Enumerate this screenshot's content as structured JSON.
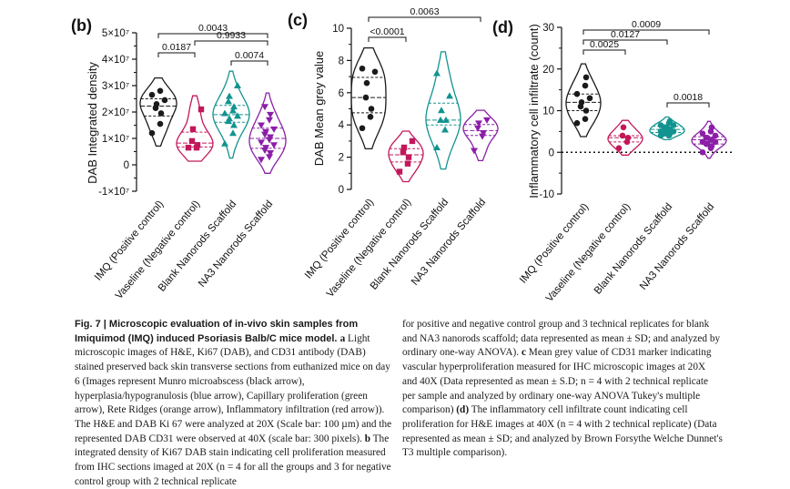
{
  "colors": {
    "black": "#1a1a1a",
    "crimson": "#c2185b",
    "teal": "#12938f",
    "violet": "#8b1fa8"
  },
  "chart_data": [
    {
      "panel": "(b)",
      "type": "violin",
      "ylabel": "DAB Integrated density",
      "ylim": [
        -10000000,
        50000000
      ],
      "yticks": [
        "5×10⁷",
        "4×10⁷",
        "3×10⁷",
        "2×10⁷",
        "1×10⁷",
        "0",
        "-1×10⁷"
      ],
      "ytick_values": [
        50000000,
        40000000,
        30000000,
        20000000,
        10000000,
        0,
        -10000000
      ],
      "categories": [
        "IMQ (Positive control)",
        "Vaseline (Negative control)",
        "Blank Nanorods Scaffold",
        "NA3 Nanorods Scaffold"
      ],
      "series": [
        {
          "group": "IMQ (Positive control)",
          "marker": "circle",
          "color": "#1a1a1a",
          "values": [
            28000000,
            26500000,
            24500000,
            23000000,
            21500000,
            19500000,
            15500000,
            12000000
          ]
        },
        {
          "group": "Vaseline (Negative control)",
          "marker": "square",
          "color": "#c2185b",
          "values": [
            21000000,
            13500000,
            9000000,
            7500000,
            6500000,
            6500000
          ]
        },
        {
          "group": "Blank Nanorods Scaffold",
          "marker": "triangle",
          "color": "#12938f",
          "values": [
            30000000,
            26000000,
            24000000,
            22000000,
            20500000,
            19500000,
            18500000,
            17500000,
            16500000,
            15000000,
            12000000,
            8000000
          ]
        },
        {
          "group": "NA3 Nanorods Scaffold",
          "marker": "triangle-down",
          "color": "#8b1fa8",
          "values": [
            22000000,
            19000000,
            17000000,
            15000000,
            13500000,
            12500000,
            11500000,
            10500000,
            9500000,
            8500000,
            7500000,
            6500000,
            5500000,
            4500000,
            3000000,
            2000000
          ]
        }
      ],
      "comparisons": [
        {
          "from": 0,
          "to": 3,
          "p": "0.0043"
        },
        {
          "from": 0,
          "to": 1,
          "p": "0.0187"
        },
        {
          "from": 1,
          "to": 3,
          "p": "0.9933"
        },
        {
          "from": 2,
          "to": 3,
          "p": "0.0074"
        }
      ]
    },
    {
      "panel": "(c)",
      "type": "violin",
      "ylabel": "DAB Mean grey value",
      "ylim": [
        0,
        10
      ],
      "yticks": [
        "10",
        "8",
        "6",
        "4",
        "2",
        "0"
      ],
      "ytick_values": [
        10,
        8,
        6,
        4,
        2,
        0
      ],
      "categories": [
        "IMQ (Positive control)",
        "Vaseline (Negative control)",
        "Blank Nanorods Scaffold",
        "NA3 Nanorods Scaffold"
      ],
      "series": [
        {
          "group": "IMQ (Positive control)",
          "marker": "circle",
          "color": "#1a1a1a",
          "values": [
            7.5,
            7.3,
            6.6,
            5.7,
            5.0,
            4.5,
            3.8
          ]
        },
        {
          "group": "Vaseline (Negative control)",
          "marker": "square",
          "color": "#c2185b",
          "values": [
            3.0,
            2.6,
            2.3,
            2.0,
            1.6,
            1.1
          ]
        },
        {
          "group": "Blank Nanorods Scaffold",
          "marker": "triangle",
          "color": "#12938f",
          "values": [
            7.2,
            5.8,
            4.9,
            4.3,
            4.3,
            3.7,
            2.6
          ]
        },
        {
          "group": "NA3 Nanorods Scaffold",
          "marker": "triangle-down",
          "color": "#8b1fa8",
          "values": [
            4.3,
            4.1,
            3.8,
            3.5,
            3.3,
            2.4
          ]
        }
      ],
      "comparisons": [
        {
          "from": 0,
          "to": 3,
          "p": "0.0063"
        },
        {
          "from": 0,
          "to": 1,
          "p": "<0.0001"
        }
      ]
    },
    {
      "panel": "(d)",
      "type": "violin",
      "ylabel": "Inflammatory cell infiltrate (count)",
      "ylim": [
        -10,
        30
      ],
      "yticks": [
        "30",
        "20",
        "10",
        "0",
        "-10"
      ],
      "ytick_values": [
        30,
        20,
        10,
        0,
        -10
      ],
      "categories": [
        "IMQ (Positive control)",
        "Vaseline (Negative control)",
        "Blank Nanorods Scaffold",
        "NA3 Nanorods Scaffold"
      ],
      "series": [
        {
          "group": "IMQ (Positive control)",
          "marker": "circle",
          "color": "#1a1a1a",
          "values": [
            18,
            16,
            14,
            13,
            12,
            11,
            10,
            8,
            7
          ]
        },
        {
          "group": "Vaseline (Negative control)",
          "marker": "circle",
          "color": "#c2185b",
          "values": [
            6,
            4,
            3.5,
            2.5,
            1
          ]
        },
        {
          "group": "Blank Nanorods Scaffold",
          "marker": "circle",
          "color": "#12938f",
          "values": [
            7.5,
            7,
            6.5,
            6.5,
            6,
            6,
            5.5,
            5.5,
            5,
            5,
            5,
            4.5,
            4.5,
            4,
            4
          ]
        },
        {
          "group": "NA3 Nanorods Scaffold",
          "marker": "circle",
          "color": "#8b1fa8",
          "values": [
            6,
            5,
            4.5,
            4,
            3.5,
            3.5,
            3,
            3,
            2.5,
            2.5,
            2,
            2,
            1.5,
            1,
            0
          ]
        }
      ],
      "comparisons": [
        {
          "from": 0,
          "to": 3,
          "p": "0.0009"
        },
        {
          "from": 0,
          "to": 2,
          "p": "0.0127"
        },
        {
          "from": 0,
          "to": 1,
          "p": "0.0025"
        },
        {
          "from": 2,
          "to": 3,
          "p": "0.0018"
        }
      ]
    }
  ],
  "caption": {
    "left_prefix": "Fig. 7 | ",
    "title": "Microscopic evaluation of in-vivo skin samples from Imiquimod (IMQ) induced Psoriasis Balb/C mice model. ",
    "a_label": "a",
    "a_text": " Light microscopic images of H&E, Ki67 (DAB), and CD31 antibody (DAB) stained preserved back skin transverse sections from euthanized mice on day 6 (Images represent Munro microabscess (black arrow), hyperplasia/hypogranulosis (blue arrow), Capillary proliferation (green arrow), Rete Ridges (orange arrow), Inflammatory infiltration (red arrow)). The H&E and DAB Ki 67 were analyzed at 20X (Scale bar: 100 µm) and the represented DAB CD31 were observed at 40X (scale bar: 300 pixels). ",
    "b_label": "b",
    "b_text": " The integrated density of Ki67 DAB stain indicating cell proliferation measured from IHC sections imaged at 20X (n = 4 for all the groups and 3 for negative control group with 2 technical replicate",
    "right_1": "for positive and negative control group and 3 technical replicates for blank and NA3 nanorods scaffold; data represented as mean ± SD; and analyzed by ordinary one-way ANOVA). ",
    "c_label": "c",
    "c_text": " Mean grey value of CD31 marker indicating vascular hyperproliferation measured for IHC microscopic images at 20X and 40X (Data represented as mean ± S.D; n = 4 with 2 technical replicate per sample and analyzed by ordinary one-way ANOVA Tukey's multiple comparison) ",
    "d_label": "(d)",
    "d_text": " The inflammatory cell infiltrate count indicating cell proliferation for H&E images at 40X (n = 4 with 2 technical replicate) (Data represented as mean ± SD; and analyzed by Brown Forsythe Welche Dunnet's T3 multiple comparison)."
  }
}
